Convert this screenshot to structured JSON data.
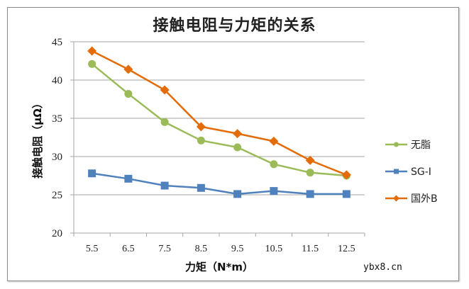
{
  "chart_data": {
    "type": "line",
    "title": "接触电阻与力矩的关系",
    "xlabel": "力矩（N*m）",
    "ylabel": "接触电阻（μΩ）",
    "categories": [
      "5.5",
      "6.5",
      "7.5",
      "8.5",
      "9.5",
      "10.5",
      "11.5",
      "12.5"
    ],
    "ylim": [
      20,
      45
    ],
    "yticks": [
      20,
      25,
      30,
      35,
      40,
      45
    ],
    "grid": true,
    "legend_position": "right",
    "series": [
      {
        "name": "无脂",
        "color": "#9bbb59",
        "marker": "circle",
        "values": [
          42.1,
          38.2,
          34.5,
          32.1,
          31.2,
          29.0,
          27.9,
          27.5
        ]
      },
      {
        "name": "SG-I",
        "color": "#4f81bd",
        "marker": "square",
        "values": [
          27.8,
          27.1,
          26.2,
          25.9,
          25.1,
          25.5,
          25.1,
          25.1
        ]
      },
      {
        "name": "国外B",
        "color": "#e36c09",
        "marker": "diamond",
        "values": [
          43.8,
          41.4,
          38.7,
          33.9,
          33.0,
          32.0,
          29.5,
          27.6
        ]
      }
    ]
  },
  "watermark": "ybx8.cn"
}
